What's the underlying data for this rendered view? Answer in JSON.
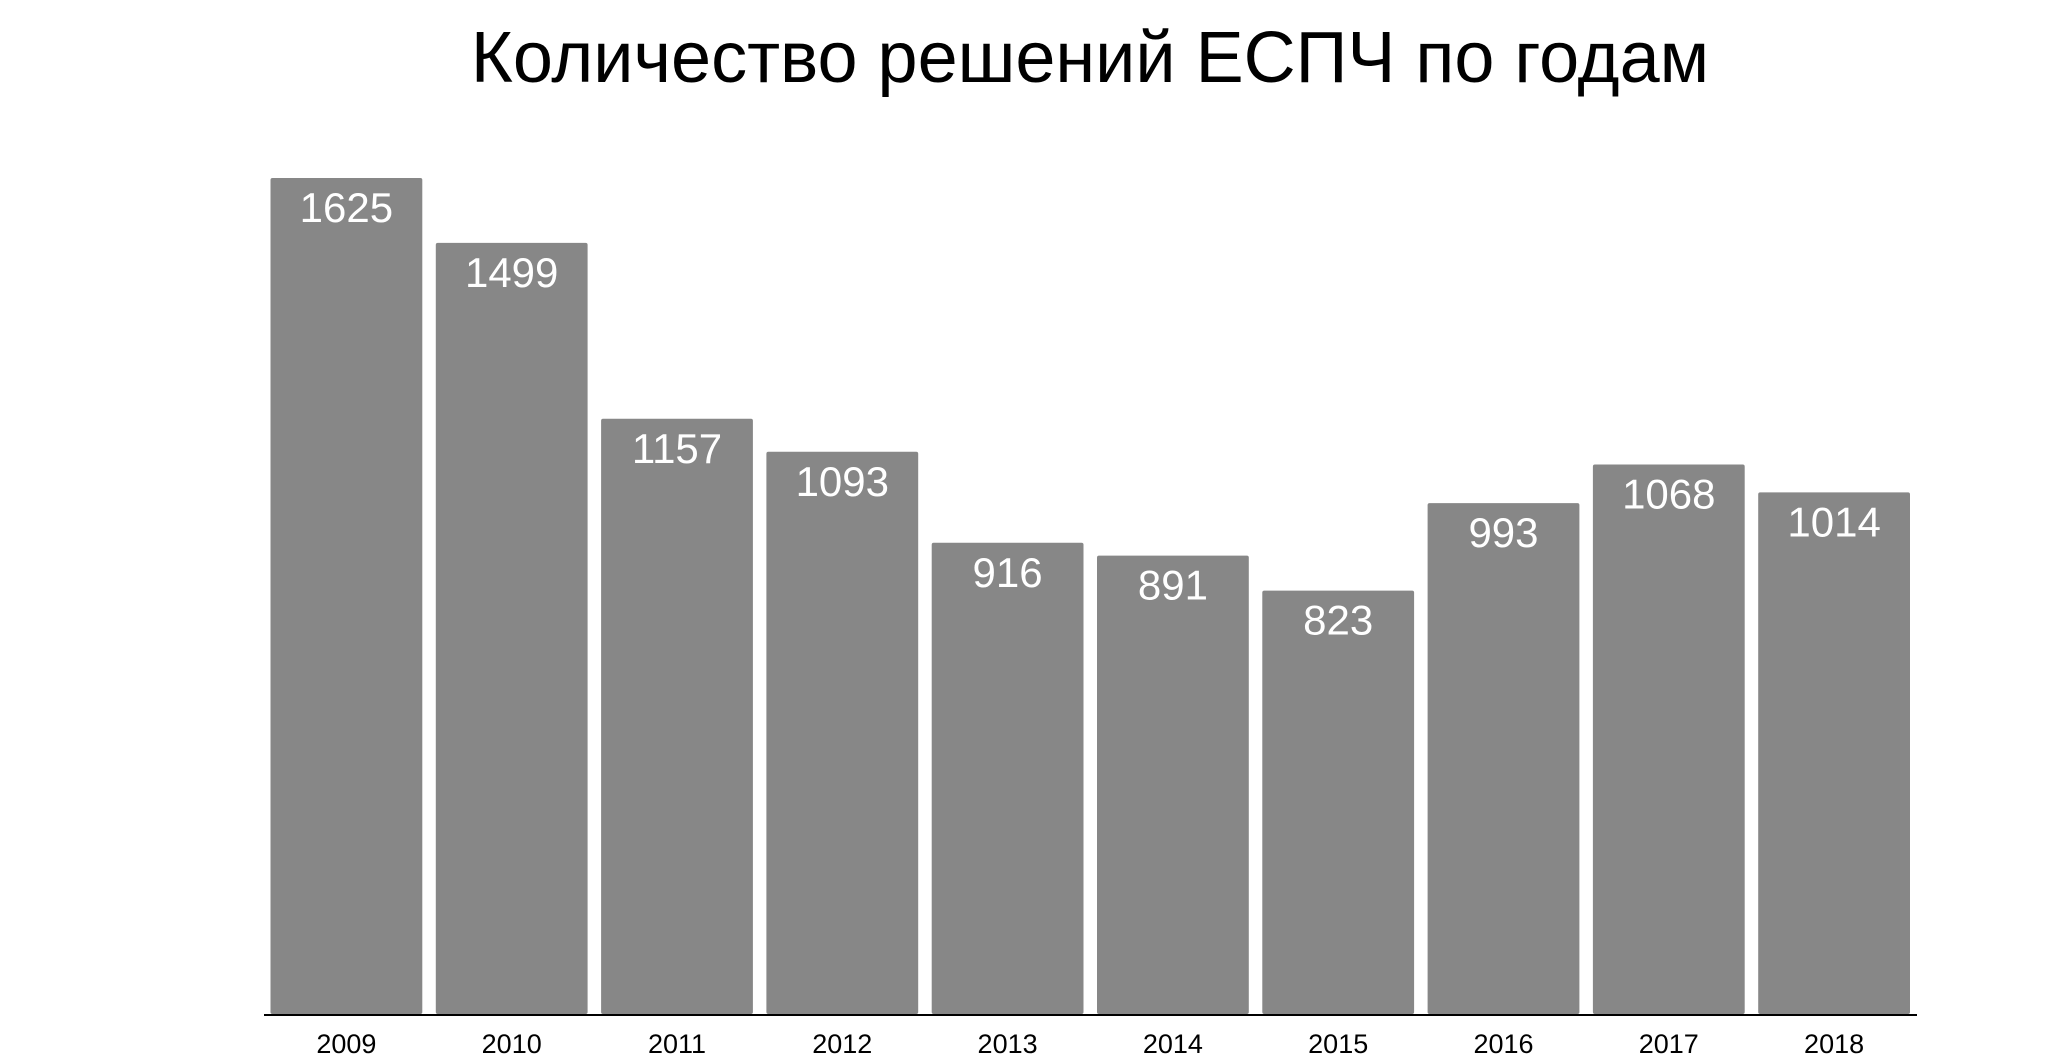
{
  "chart_data": {
    "type": "bar",
    "title": "Количество решений ЕСПЧ по годам",
    "categories": [
      "2009",
      "2010",
      "2011",
      "2012",
      "2013",
      "2014",
      "2015",
      "2016",
      "2017",
      "2018"
    ],
    "values": [
      1625,
      1499,
      1157,
      1093,
      916,
      891,
      823,
      993,
      1068,
      1014
    ],
    "color": "#878787"
  }
}
